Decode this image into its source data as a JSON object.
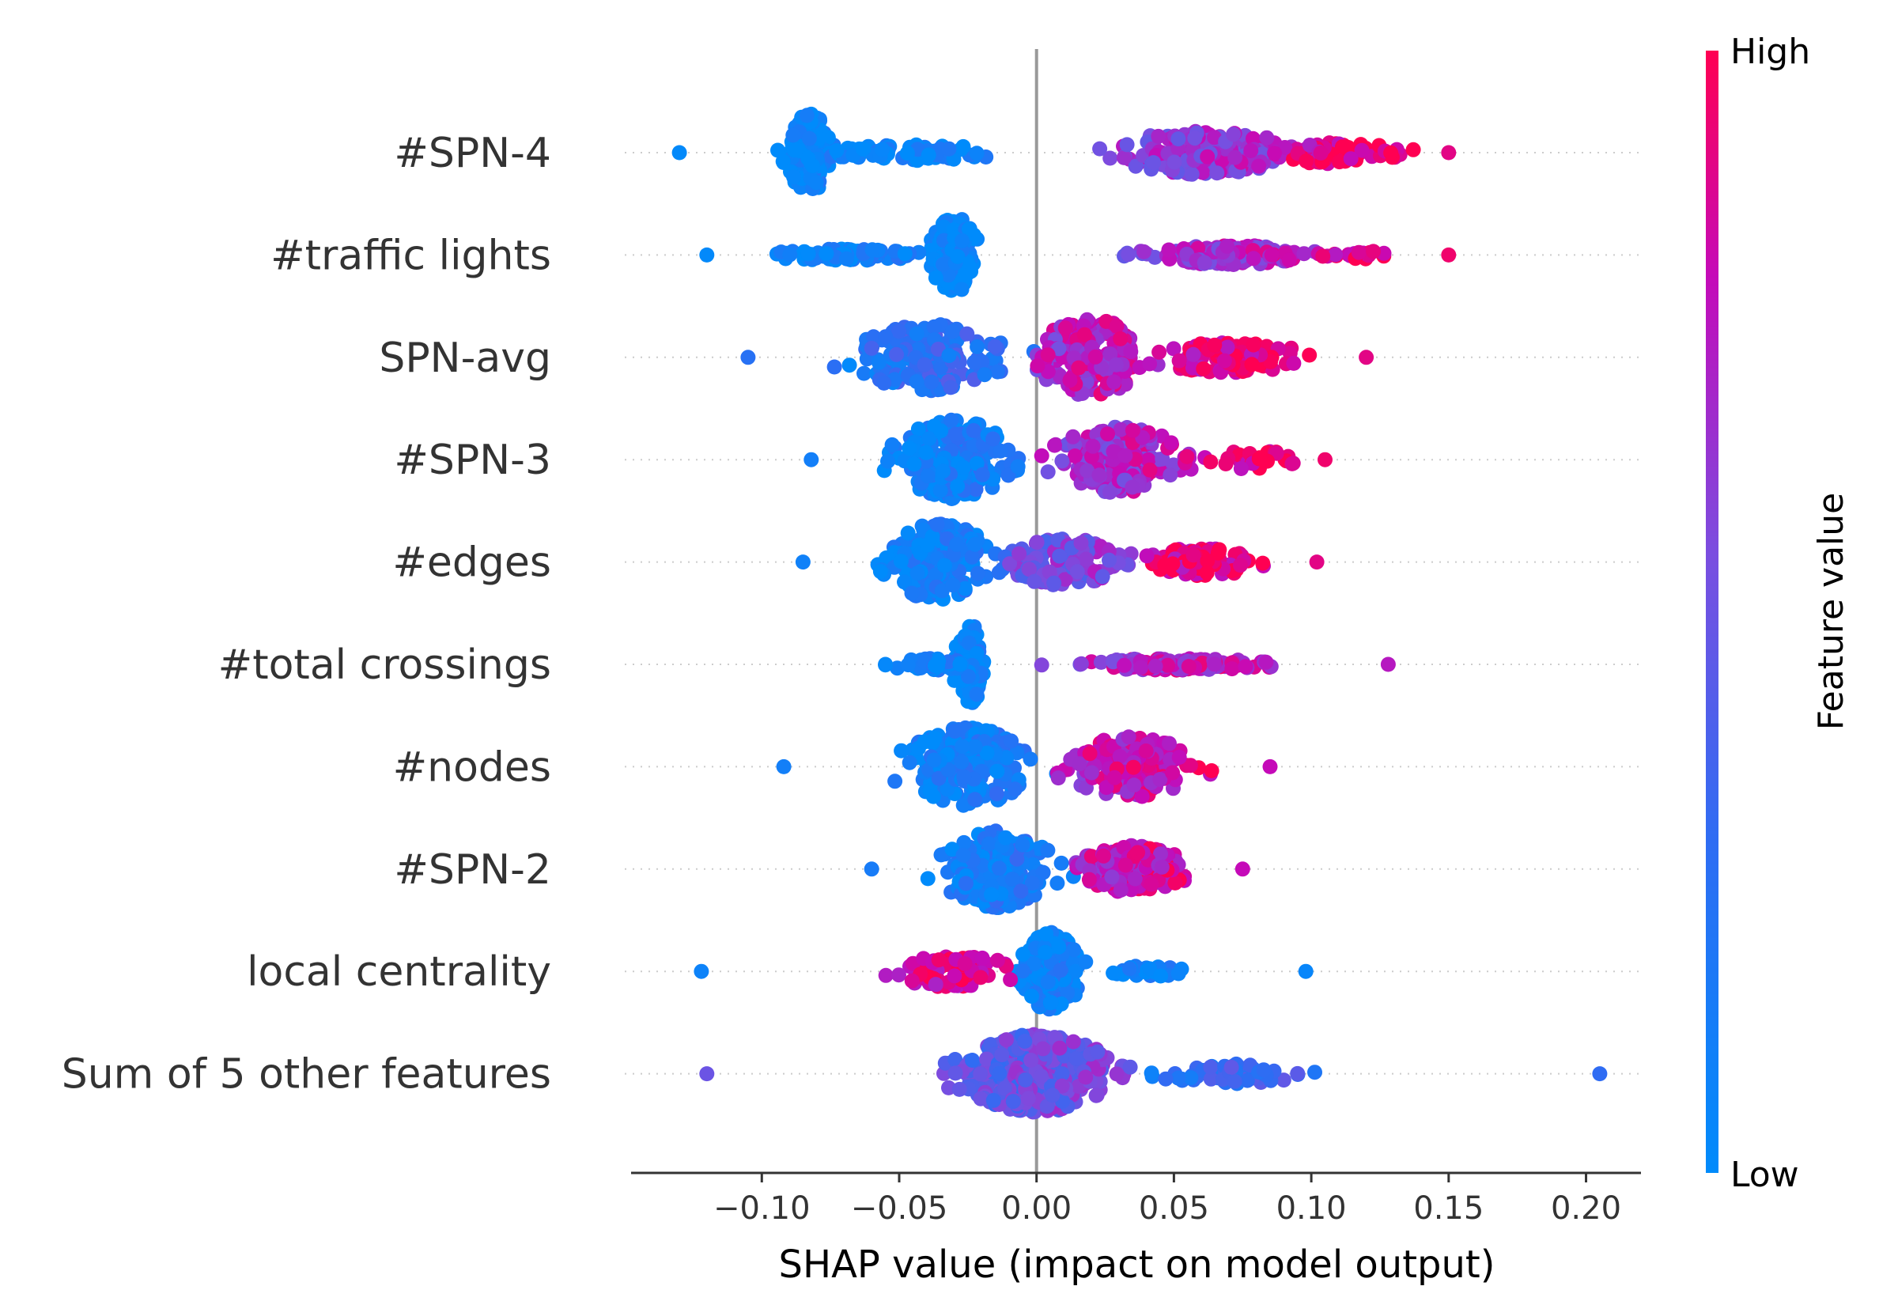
{
  "chart_data": {
    "type": "scatter",
    "subtype": "shap-beeswarm",
    "xlabel": "SHAP value (impact on model output)",
    "xlim": [
      -0.147,
      0.22
    ],
    "xticks": [
      -0.1,
      -0.05,
      0.0,
      0.05,
      0.1,
      0.15,
      0.2
    ],
    "xtick_labels": [
      "−0.10",
      "−0.05",
      "0.00",
      "0.05",
      "0.10",
      "0.15",
      "0.20"
    ],
    "zero_line": 0.0,
    "colorbar": {
      "title": "Feature value",
      "high_label": "High",
      "low_label": "Low",
      "low_color": "#008bfb",
      "high_color": "#ff0052"
    },
    "features": [
      {
        "name": "#SPN-4",
        "min": -0.13,
        "max": 0.15,
        "clusters": [
          {
            "center": -0.083,
            "width": 0.012,
            "count": 130,
            "height": 1.0,
            "color": 0.02
          },
          {
            "center": -0.045,
            "width": 0.04,
            "count": 60,
            "height": 0.2,
            "color": 0.05
          },
          {
            "center": 0.06,
            "width": 0.045,
            "count": 200,
            "height": 0.55,
            "color": 0.65
          },
          {
            "center": 0.11,
            "width": 0.03,
            "count": 60,
            "height": 0.3,
            "color": 0.9
          }
        ]
      },
      {
        "name": "#traffic lights",
        "min": -0.12,
        "max": 0.15,
        "clusters": [
          {
            "center": -0.03,
            "width": 0.01,
            "count": 120,
            "height": 1.0,
            "color": 0.02
          },
          {
            "center": -0.07,
            "width": 0.035,
            "count": 80,
            "height": 0.15,
            "color": 0.04
          },
          {
            "center": 0.07,
            "width": 0.04,
            "count": 160,
            "height": 0.25,
            "color": 0.7
          },
          {
            "center": 0.12,
            "width": 0.02,
            "count": 20,
            "height": 0.1,
            "color": 0.95
          }
        ]
      },
      {
        "name": "SPN-avg",
        "min": -0.105,
        "max": 0.12,
        "clusters": [
          {
            "center": -0.04,
            "width": 0.035,
            "count": 180,
            "height": 0.85,
            "color": 0.25
          },
          {
            "center": 0.02,
            "width": 0.025,
            "count": 160,
            "height": 1.0,
            "color": 0.75
          },
          {
            "center": 0.07,
            "width": 0.035,
            "count": 100,
            "height": 0.4,
            "color": 0.9
          }
        ]
      },
      {
        "name": "#SPN-3",
        "min": -0.082,
        "max": 0.105,
        "clusters": [
          {
            "center": -0.03,
            "width": 0.03,
            "count": 190,
            "height": 1.0,
            "color": 0.12
          },
          {
            "center": 0.03,
            "width": 0.03,
            "count": 190,
            "height": 0.85,
            "color": 0.7
          },
          {
            "center": 0.08,
            "width": 0.02,
            "count": 30,
            "height": 0.25,
            "color": 0.95
          }
        ]
      },
      {
        "name": "#edges",
        "min": -0.085,
        "max": 0.102,
        "clusters": [
          {
            "center": -0.035,
            "width": 0.025,
            "count": 170,
            "height": 1.0,
            "color": 0.1
          },
          {
            "center": 0.01,
            "width": 0.03,
            "count": 130,
            "height": 0.6,
            "color": 0.55
          },
          {
            "center": 0.06,
            "width": 0.03,
            "count": 130,
            "height": 0.35,
            "color": 0.9
          }
        ]
      },
      {
        "name": "#total crossings",
        "min": -0.055,
        "max": 0.128,
        "clusters": [
          {
            "center": -0.024,
            "width": 0.007,
            "count": 120,
            "height": 1.0,
            "color": 0.03
          },
          {
            "center": -0.04,
            "width": 0.02,
            "count": 40,
            "height": 0.15,
            "color": 0.05
          },
          {
            "center": 0.05,
            "width": 0.045,
            "count": 170,
            "height": 0.15,
            "color": 0.75
          }
        ]
      },
      {
        "name": "#nodes",
        "min": -0.092,
        "max": 0.085,
        "clusters": [
          {
            "center": -0.025,
            "width": 0.03,
            "count": 190,
            "height": 1.0,
            "color": 0.12
          },
          {
            "center": 0.035,
            "width": 0.03,
            "count": 170,
            "height": 0.8,
            "color": 0.8
          }
        ]
      },
      {
        "name": "#SPN-2",
        "min": -0.06,
        "max": 0.075,
        "clusters": [
          {
            "center": -0.015,
            "width": 0.025,
            "count": 180,
            "height": 1.0,
            "color": 0.15
          },
          {
            "center": 0.035,
            "width": 0.025,
            "count": 150,
            "height": 0.6,
            "color": 0.8
          }
        ]
      },
      {
        "name": "local centrality",
        "min": -0.122,
        "max": 0.098,
        "clusters": [
          {
            "center": 0.005,
            "width": 0.014,
            "count": 170,
            "height": 1.0,
            "color": 0.08
          },
          {
            "center": -0.03,
            "width": 0.03,
            "count": 80,
            "height": 0.4,
            "color": 0.9
          },
          {
            "center": 0.04,
            "width": 0.02,
            "count": 30,
            "height": 0.15,
            "color": 0.05
          }
        ]
      },
      {
        "name": "Sum of 5 other features",
        "min": -0.12,
        "max": 0.205,
        "clusters": [
          {
            "center": 0.0,
            "width": 0.035,
            "count": 380,
            "height": 1.0,
            "color": 0.5
          },
          {
            "center": 0.07,
            "width": 0.035,
            "count": 60,
            "height": 0.25,
            "color": 0.3
          }
        ]
      }
    ]
  }
}
